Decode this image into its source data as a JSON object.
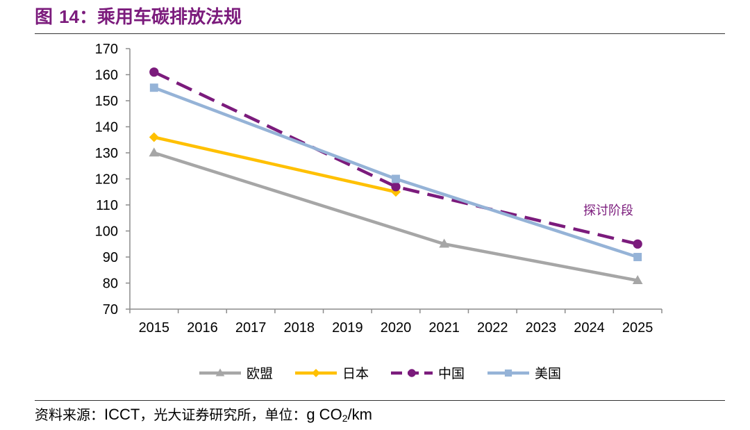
{
  "header": {
    "title_prefix": "图",
    "title_number": "14",
    "title_text": "：乘用车碳排放法规"
  },
  "chart_data": {
    "type": "line",
    "title": "",
    "xlabel": "",
    "ylabel": "",
    "ylim": [
      70,
      170
    ],
    "yticks": [
      70,
      80,
      90,
      100,
      110,
      120,
      130,
      140,
      150,
      160,
      170
    ],
    "categories": [
      "2015",
      "2016",
      "2017",
      "2018",
      "2019",
      "2020",
      "2021",
      "2022",
      "2023",
      "2024",
      "2025"
    ],
    "grid": false,
    "legend_position": "bottom",
    "series": [
      {
        "name": "欧盟",
        "color": "#a6a6a6",
        "marker": "triangle",
        "dash": "solid",
        "points": [
          {
            "x": "2015",
            "y": 130
          },
          {
            "x": "2021",
            "y": 95
          },
          {
            "x": "2025",
            "y": 81
          }
        ]
      },
      {
        "name": "日本",
        "color": "#ffc000",
        "marker": "diamond",
        "dash": "solid",
        "points": [
          {
            "x": "2015",
            "y": 136
          },
          {
            "x": "2020",
            "y": 115
          }
        ]
      },
      {
        "name": "中国",
        "color": "#7b1b7c",
        "marker": "circle",
        "dash": "dashed",
        "points": [
          {
            "x": "2015",
            "y": 161
          },
          {
            "x": "2020",
            "y": 117
          },
          {
            "x": "2025",
            "y": 95
          }
        ]
      },
      {
        "name": "美国",
        "color": "#95b3d7",
        "marker": "square",
        "dash": "solid",
        "points": [
          {
            "x": "2015",
            "y": 155
          },
          {
            "x": "2020",
            "y": 120
          },
          {
            "x": "2025",
            "y": 90
          }
        ]
      }
    ],
    "annotation": {
      "text": "探讨阶段",
      "color": "#7b1b7c"
    }
  },
  "footer": {
    "source_label": "资料来源：",
    "source_org": "ICCT",
    "source_rest": "，光大证券研究所，单位：",
    "unit_prefix": "g CO",
    "unit_sub": "2",
    "unit_suffix": "/km"
  }
}
